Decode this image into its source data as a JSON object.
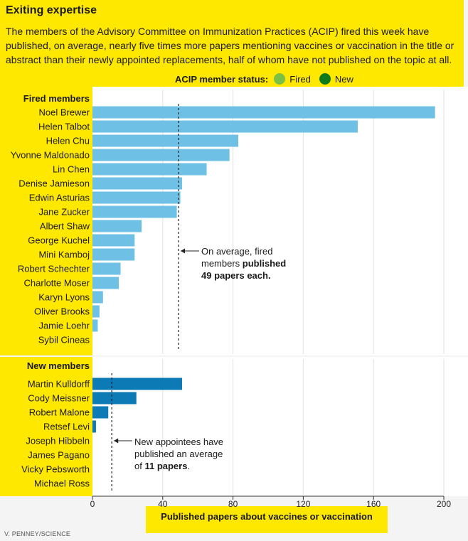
{
  "header": {
    "title": "Exiting expertise",
    "subtitle": "The members of the Advisory Committee on Immunization Practices (ACIP) fired this week have published, on average, nearly five times more papers mentioning vaccines or vaccination in the title or abstract than their newly appointed replacements, half of whom have not published on the topic at all."
  },
  "legend": {
    "title": "ACIP member status:",
    "items": [
      {
        "label": "Fired",
        "color": "#7ac143"
      },
      {
        "label": "New",
        "color": "#0e7a1a"
      }
    ]
  },
  "chart_data": {
    "type": "bar",
    "orientation": "horizontal",
    "groups": [
      {
        "title": "Fired members",
        "color": "#6ec1e4",
        "categories": [
          "Noel Brewer",
          "Helen Talbot",
          "Helen Chu",
          "Yvonne Maldonado",
          "Lin Chen",
          "Denise Jamieson",
          "Edwin Asturias",
          "Jane Zucker",
          "Albert Shaw",
          "George Kuchel",
          "Mini Kamboj",
          "Robert Schechter",
          "Charlotte Moser",
          "Karyn Lyons",
          "Oliver Brooks",
          "Jamie Loehr",
          "Sybil Cineas"
        ],
        "values": [
          195,
          151,
          83,
          78,
          65,
          51,
          50,
          48,
          28,
          24,
          24,
          16,
          15,
          6,
          4,
          3,
          0
        ],
        "average": 49,
        "annotation": [
          "On average, fired",
          "members ",
          "published",
          "49 papers each."
        ]
      },
      {
        "title": "New members",
        "color": "#0b7ab5",
        "categories": [
          "Martin Kulldorff",
          "Cody Meissner",
          "Robert Malone",
          "Retsef Levi",
          "Joseph Hibbeln",
          "James Pagano",
          "Vicky Pebsworth",
          "Michael Ross"
        ],
        "values": [
          51,
          25,
          9,
          2,
          0,
          0,
          0,
          0
        ],
        "average": 11,
        "annotation": [
          "New appointees have",
          "published an average",
          "of ",
          "11 papers",
          "."
        ]
      }
    ],
    "xticks": [
      0,
      40,
      80,
      120,
      160,
      200
    ],
    "xlim": [
      0,
      200
    ],
    "xlabel": "Published papers about vaccines or vaccination",
    "grid": true
  },
  "credit": "V. PENNEY/SCIENCE"
}
